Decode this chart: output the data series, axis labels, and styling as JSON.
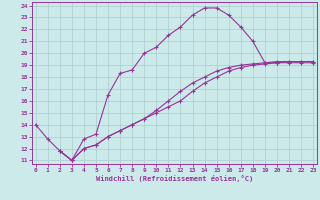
{
  "xlabel": "Windchill (Refroidissement éolien,°C)",
  "bg_color": "#cceaea",
  "line_color": "#993399",
  "grid_color": "#aacccc",
  "xmin": 0,
  "xmax": 23,
  "ymin": 11,
  "ymax": 24,
  "curve1_x": [
    0,
    1,
    2,
    3,
    4,
    5,
    6,
    7,
    8,
    9,
    10,
    11,
    12,
    13,
    14,
    15,
    16,
    17,
    18,
    19,
    20,
    21,
    22,
    23
  ],
  "curve1_y": [
    14.0,
    12.8,
    11.8,
    11.0,
    12.8,
    13.2,
    16.5,
    18.3,
    18.6,
    20.0,
    20.5,
    21.5,
    22.2,
    23.2,
    23.8,
    23.8,
    23.2,
    22.2,
    21.0,
    19.2,
    19.2,
    19.2,
    19.2,
    19.2
  ],
  "curve2_x": [
    2,
    3,
    4,
    5,
    6,
    7,
    8,
    9,
    10,
    11,
    12,
    13,
    14,
    15,
    16,
    17,
    18,
    19,
    20,
    21,
    22,
    23
  ],
  "curve2_y": [
    11.8,
    11.0,
    12.0,
    12.3,
    13.0,
    13.5,
    14.0,
    14.5,
    15.0,
    15.5,
    16.0,
    16.8,
    17.5,
    18.0,
    18.5,
    18.8,
    19.0,
    19.1,
    19.2,
    19.3,
    19.3,
    19.3
  ],
  "curve3_x": [
    2,
    3,
    4,
    5,
    6,
    7,
    8,
    9,
    10,
    11,
    12,
    13,
    14,
    15,
    16,
    17,
    18,
    19,
    20,
    21,
    22,
    23
  ],
  "curve3_y": [
    11.8,
    11.0,
    12.0,
    12.3,
    13.0,
    13.5,
    14.0,
    14.5,
    15.2,
    16.0,
    16.8,
    17.5,
    18.0,
    18.5,
    18.8,
    19.0,
    19.1,
    19.2,
    19.3,
    19.3,
    19.3,
    19.3
  ]
}
